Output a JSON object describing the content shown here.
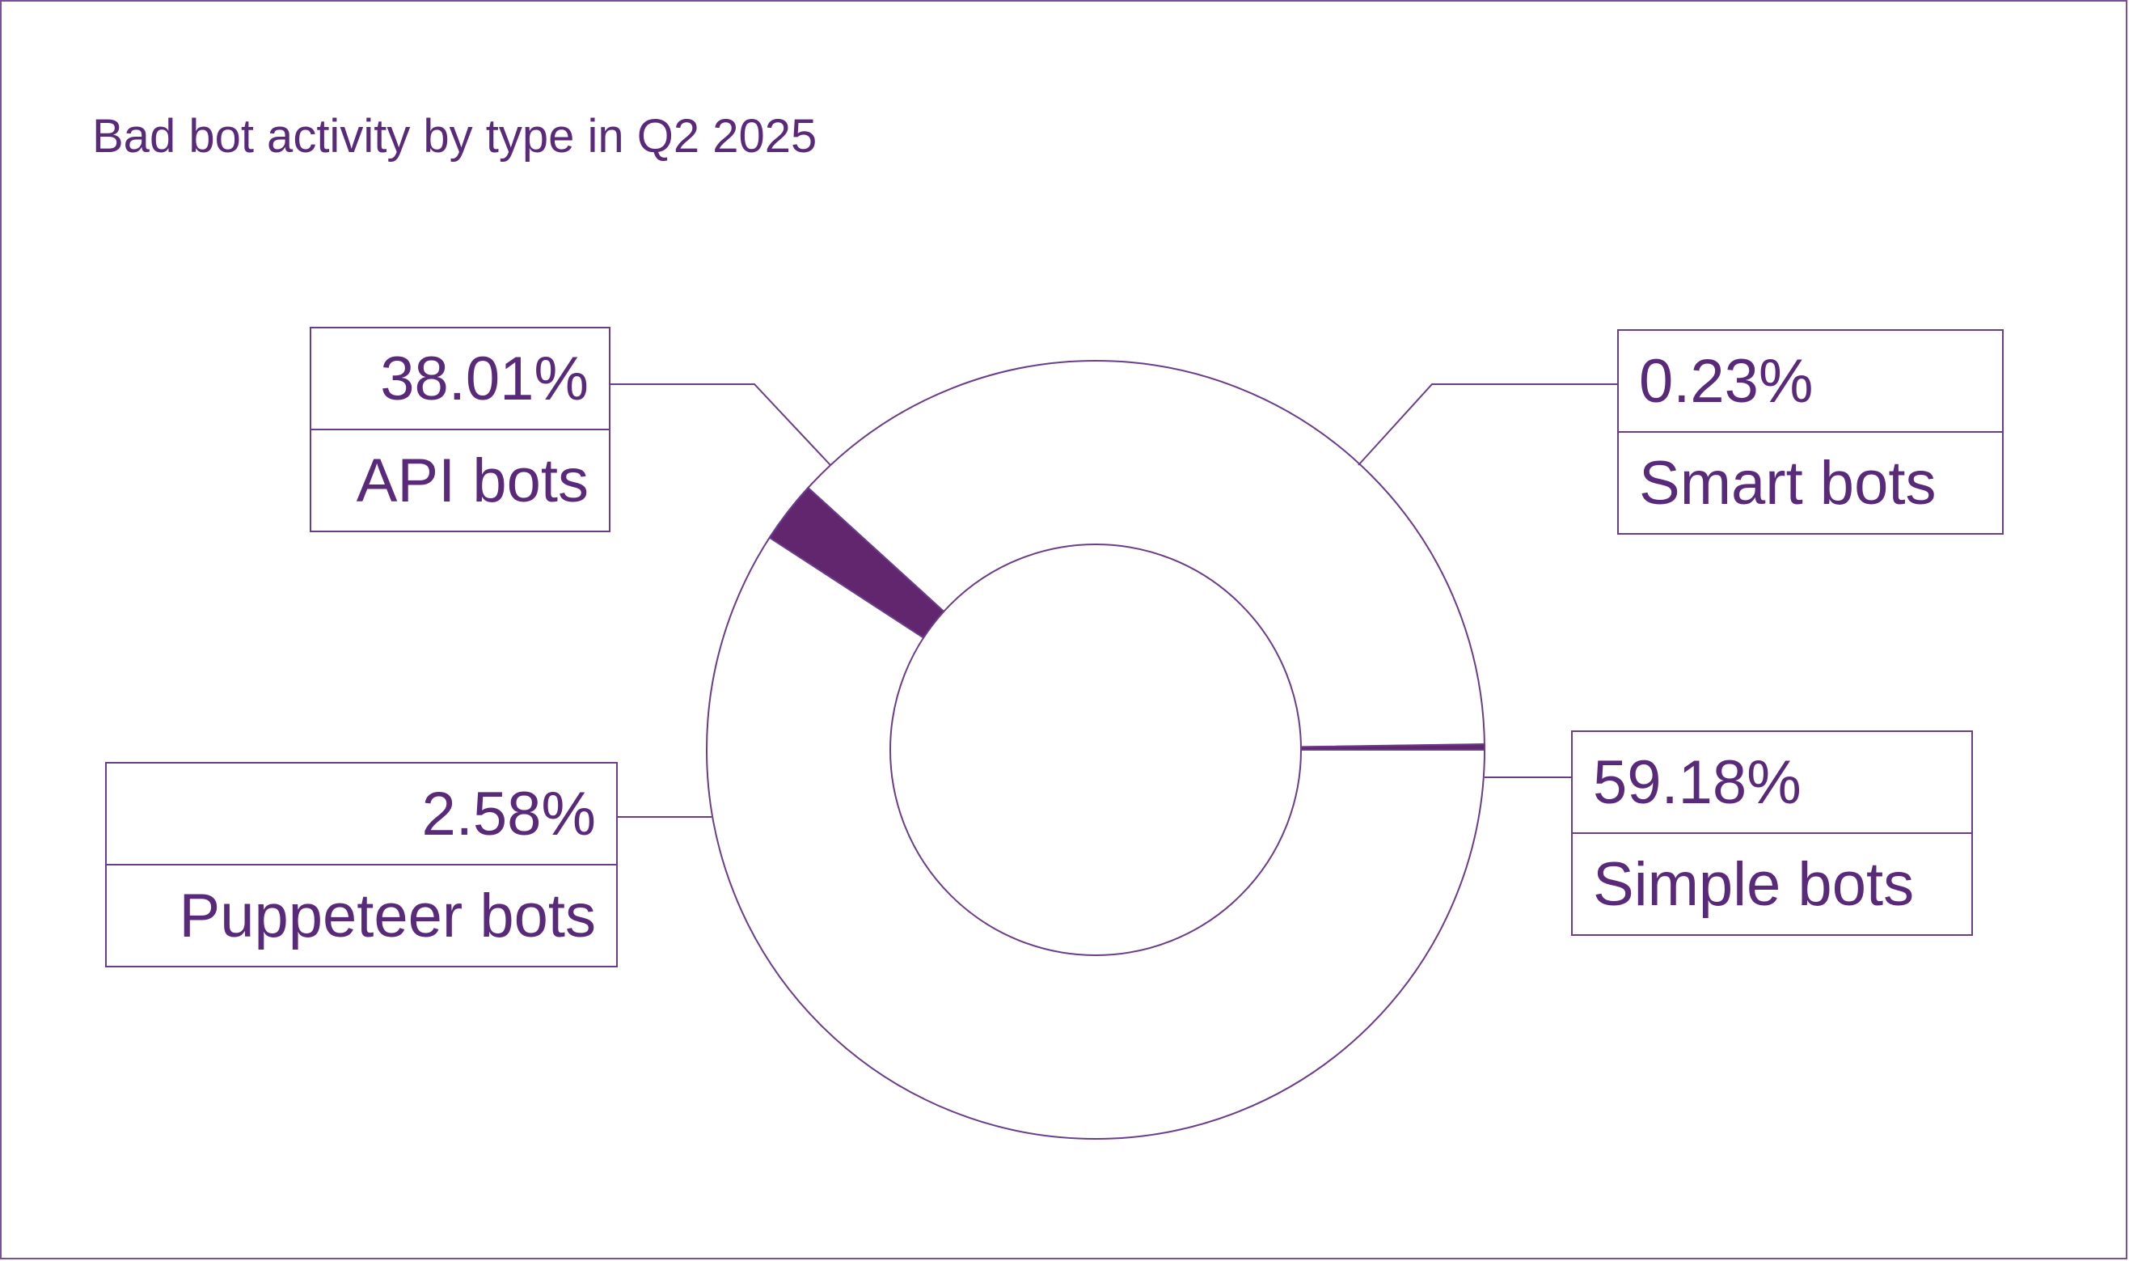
{
  "chart_data": {
    "type": "pie",
    "title": "Bad bot activity by type in Q2 2025",
    "variant": "donut",
    "slices": [
      {
        "label": "Simple bots",
        "value": 59.18,
        "value_label": "59.18%"
      },
      {
        "label": "Puppeteer bots",
        "value": 2.58,
        "value_label": "2.58%"
      },
      {
        "label": "API bots",
        "value": 38.01,
        "value_label": "38.01%"
      },
      {
        "label": "Smart bots",
        "value": 0.23,
        "value_label": "0.23%"
      }
    ],
    "colors": {
      "outline": "#6a3d8a",
      "fill": "#62266f",
      "text": "#5a2a7a"
    }
  }
}
